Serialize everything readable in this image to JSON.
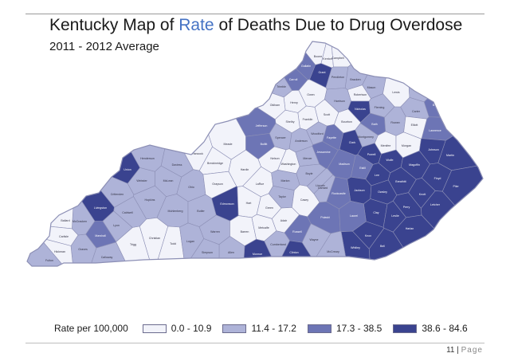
{
  "header": {
    "title_before": "Kentucky Map of ",
    "title_highlight": "Rate",
    "title_after": " of Deaths Due to Drug Overdose",
    "subtitle": "2011 - 2012 Average"
  },
  "legend": {
    "title": "Rate per 100,000",
    "classes": [
      {
        "label": "0.0 - 10.9",
        "color": "#f2f3fa"
      },
      {
        "label": "11.4 - 17.2",
        "color": "#aeb3d8"
      },
      {
        "label": "17.3 - 38.5",
        "color": "#6d75b5"
      },
      {
        "label": "38.6 - 84.6",
        "color": "#3a438f"
      }
    ]
  },
  "map": {
    "outline_color": "#8c8fb5",
    "county_labels": [
      "Boone",
      "Kenton",
      "Campbell",
      "Gallatin",
      "Grant",
      "Pendleton",
      "Bracken",
      "Mason",
      "Carroll",
      "Trimble",
      "Owen",
      "Robertson",
      "Lewis",
      "Greenup",
      "Boyd",
      "Henry",
      "Oldham",
      "Harrison",
      "Nicholas",
      "Fleming",
      "Carter",
      "Franklin",
      "Shelby",
      "Scott",
      "Bourbon",
      "Bath",
      "Rowan",
      "Elliott",
      "Lawrence",
      "Jefferson",
      "Woodford",
      "Fayette",
      "Clark",
      "Montgomery",
      "Menifee",
      "Morgan",
      "Johnson",
      "Martin",
      "Meade",
      "Bullitt",
      "Spencer",
      "Anderson",
      "Jessamine",
      "Powell",
      "Wolfe",
      "Magoffin",
      "Floyd",
      "Pike",
      "Hancock",
      "Breckinridge",
      "Hardin",
      "Nelson",
      "Washington",
      "Mercer",
      "Madison",
      "Estill",
      "Lee",
      "Breathitt",
      "Knott",
      "Letcher",
      "Henderson",
      "Daviess",
      "Union",
      "Webster",
      "McLean",
      "Ohio",
      "Grayson",
      "LaRue",
      "Marion",
      "Boyle",
      "Garrard",
      "Jackson",
      "Owsley",
      "Perry",
      "Crittenden",
      "Hopkins",
      "Muhlenberg",
      "Butler",
      "Edmonson",
      "Hart",
      "Green",
      "Taylor",
      "Casey",
      "Lincoln",
      "Rockcastle",
      "Clay",
      "Leslie",
      "Harlan",
      "Livingston",
      "Caldwell",
      "Christian",
      "Todd",
      "Logan",
      "Warren",
      "Barren",
      "Metcalfe",
      "Adair",
      "Russell",
      "Pulaski",
      "Laurel",
      "Knox",
      "Bell",
      "Whitley",
      "McCreary",
      "Wayne",
      "Clinton",
      "Cumberland",
      "Monroe",
      "Allen",
      "Simpson",
      "Trigg",
      "Lyon",
      "Marshall",
      "Calloway",
      "Graves",
      "McCracken",
      "Ballard",
      "Carlisle",
      "Hickman",
      "Fulton"
    ]
  }
}
